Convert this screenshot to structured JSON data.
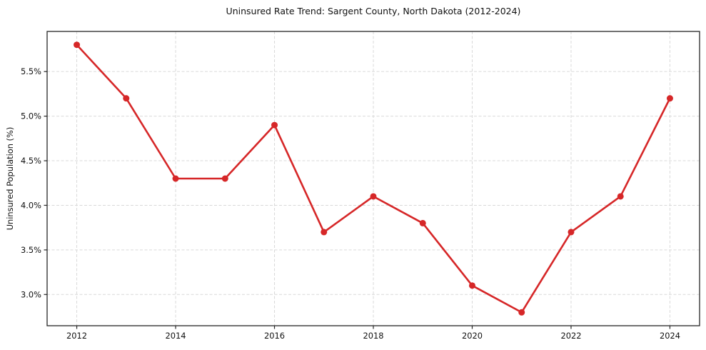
{
  "chart_data": {
    "type": "line",
    "title": "Uninsured Rate Trend: Sargent County, North Dakota (2012-2024)",
    "xlabel": "",
    "ylabel": "Uninsured Population (%)",
    "x": [
      2012,
      2013,
      2014,
      2015,
      2016,
      2017,
      2018,
      2019,
      2020,
      2021,
      2022,
      2023,
      2024
    ],
    "values": [
      5.8,
      5.2,
      4.3,
      4.3,
      4.9,
      3.7,
      4.1,
      3.8,
      3.1,
      2.8,
      3.7,
      4.1,
      5.2
    ],
    "xlim": [
      2011.4,
      2024.6
    ],
    "ylim": [
      2.65,
      5.95
    ],
    "xticks": [
      2012,
      2014,
      2016,
      2018,
      2020,
      2022,
      2024
    ],
    "xtick_labels": [
      "2012",
      "2014",
      "2016",
      "2018",
      "2020",
      "2022",
      "2024"
    ],
    "ytick_values": [
      3.0,
      3.5,
      4.0,
      4.5,
      5.0,
      5.5
    ],
    "ytick_labels": [
      "3.0%",
      "3.5%",
      "4.0%",
      "4.5%",
      "5.0%",
      "5.5%"
    ],
    "grid": true,
    "grid_style": "dashed",
    "legend": false,
    "marker": "circle",
    "line_color": "#d62728",
    "grid_color": "#d9d9d9",
    "spine_color": "#262626",
    "text_color": "#111111",
    "background_color": "#ffffff"
  }
}
